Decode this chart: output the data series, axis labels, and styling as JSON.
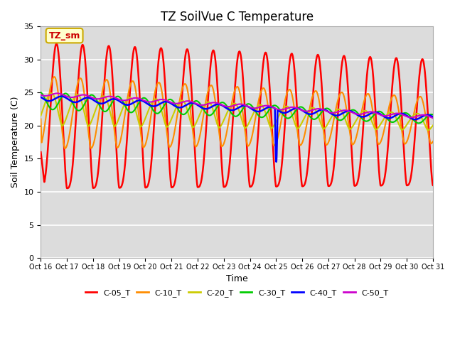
{
  "title": "TZ SoilVue C Temperature",
  "xlabel": "Time",
  "ylabel": "Soil Temperature (C)",
  "ylim": [
    0,
    35
  ],
  "yticks": [
    0,
    5,
    10,
    15,
    20,
    25,
    30,
    35
  ],
  "x_ticks_labels": [
    "Oct 16",
    "Oct 17",
    "Oct 18",
    "Oct 19",
    "Oct 20",
    "Oct 21",
    "Oct 22",
    "Oct 23",
    "Oct 24",
    "Oct 25",
    "Oct 26",
    "Oct 27",
    "Oct 28",
    "Oct 29",
    "Oct 30",
    "Oct 31"
  ],
  "legend_label": "TZ_sm",
  "series_labels": [
    "C-05_T",
    "C-10_T",
    "C-20_T",
    "C-30_T",
    "C-40_T",
    "C-50_T"
  ],
  "series_colors": [
    "#ff0000",
    "#ff8c00",
    "#cccc00",
    "#00cc00",
    "#0000ff",
    "#cc00cc"
  ],
  "plot_bg_color": "#dcdcdc",
  "grid_color": "#ffffff",
  "title_fontsize": 12,
  "axis_label_fontsize": 9,
  "tick_fontsize": 8,
  "legend_box_color": "#ffffcc",
  "legend_box_edge": "#ccaa00"
}
